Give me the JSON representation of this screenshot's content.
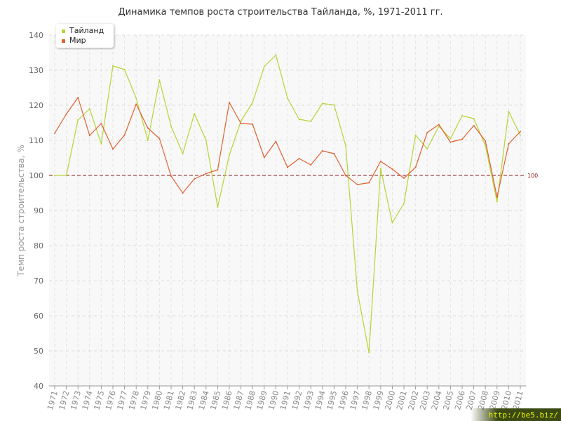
{
  "chart_data": {
    "type": "line",
    "title": "Динамика темпов роста строительства Тайланда, %, 1971-2011 гг.",
    "ylabel": "Темп роста строительства, %",
    "xlabel": "",
    "ylim": [
      40,
      140
    ],
    "yticks": [
      40,
      50,
      60,
      70,
      80,
      90,
      100,
      110,
      120,
      130,
      140
    ],
    "grid": true,
    "legend_position": "top-left",
    "reference_line": {
      "value": 100,
      "label": "100",
      "color": "#8b1a1a"
    },
    "categories": [
      "1971",
      "1972",
      "1973",
      "1974",
      "1975",
      "1976",
      "1977",
      "1978",
      "1979",
      "1980",
      "1981",
      "1982",
      "1983",
      "1984",
      "1985",
      "1986",
      "1987",
      "1988",
      "1989",
      "1990",
      "1991",
      "1992",
      "1993",
      "1994",
      "1995",
      "1996",
      "1997",
      "1998",
      "1999",
      "2000",
      "2001",
      "2002",
      "2003",
      "2004",
      "2005",
      "2006",
      "2007",
      "2008",
      "2009",
      "2010",
      "2011"
    ],
    "series": [
      {
        "name": "Тайланд",
        "color": "#b5d435",
        "values": [
          100,
          100,
          115.8,
          119,
          109,
          131.2,
          130.2,
          122,
          110,
          127.2,
          114,
          106.2,
          117.6,
          110,
          91,
          105.8,
          115.5,
          120.8,
          131,
          134.3,
          122,
          116,
          115.4,
          120.5,
          120.1,
          108.5,
          67,
          49.5,
          102,
          86.5,
          92,
          111.5,
          107.6,
          114,
          110.5,
          117,
          116.2,
          108.5,
          92.5,
          118.2,
          111.5
        ]
      },
      {
        "name": "Мир",
        "color": "#e06030",
        "values": [
          112,
          117.5,
          122.2,
          111.4,
          114.8,
          107.5,
          111.5,
          120.3,
          113.5,
          110.5,
          99.8,
          95,
          99,
          100.5,
          101.6,
          120.8,
          114.8,
          114.6,
          105.1,
          109.7,
          102.3,
          104.8,
          103,
          107,
          106.2,
          100,
          97.4,
          97.9,
          104,
          101.8,
          99.2,
          102.3,
          112.2,
          114.5,
          109.5,
          110.3,
          114.2,
          109.8,
          93.8,
          109,
          112.5
        ]
      }
    ]
  },
  "watermark": "http://be5.biz/"
}
